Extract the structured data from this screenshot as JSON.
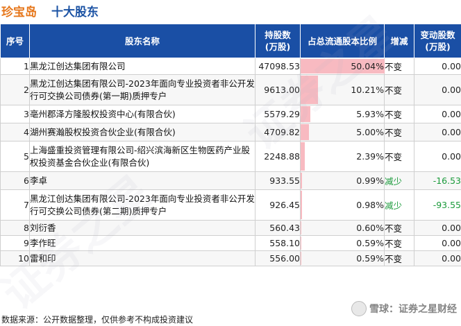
{
  "header": {
    "brand": "珍宝岛",
    "title": "十大股东"
  },
  "columns": {
    "idx": "序号",
    "name": "股东名称",
    "holding": "持股数\n(万股)",
    "ratio": "占总流通股本比例",
    "change": "增减",
    "delta": "变动股数\n(万股)"
  },
  "rows": [
    {
      "idx": "1",
      "name": "黑龙江创达集团有限公司",
      "holding": "47098.53",
      "ratio": "50.04%",
      "ratio_value": 50.04,
      "change": "不变",
      "delta": "0.00"
    },
    {
      "idx": "2",
      "name": "黑龙江创达集团有限公司-2023年面向专业投资者非公开发行可交换公司债券(第一期)质押专户",
      "holding": "9613.00",
      "ratio": "10.21%",
      "ratio_value": 10.21,
      "change": "不变",
      "delta": "0.00"
    },
    {
      "idx": "3",
      "name": "亳州郡泽方隆股权投资中心(有限合伙)",
      "holding": "5579.29",
      "ratio": "5.93%",
      "ratio_value": 5.93,
      "change": "不变",
      "delta": "0.00"
    },
    {
      "idx": "4",
      "name": "湖州赛瀚股权投资合伙企业(有限合伙)",
      "holding": "4709.82",
      "ratio": "5.00%",
      "ratio_value": 5.0,
      "change": "不变",
      "delta": "0.00"
    },
    {
      "idx": "5",
      "name": "上海盛重投资管理有限公司-绍兴滨海新区生物医药产业股权投资基金合伙企业(有限合伙)",
      "holding": "2248.88",
      "ratio": "2.39%",
      "ratio_value": 2.39,
      "change": "不变",
      "delta": "0.00"
    },
    {
      "idx": "6",
      "name": "李卓",
      "holding": "933.55",
      "ratio": "0.99%",
      "ratio_value": 0.99,
      "change": "减少",
      "delta": "-16.53"
    },
    {
      "idx": "7",
      "name": "黑龙江创达集团有限公司-2023年面向专业投资者非公开发行可交换公司债券(第二期)质押专户",
      "holding": "926.45",
      "ratio": "0.98%",
      "ratio_value": 0.98,
      "change": "减少",
      "delta": "-93.55"
    },
    {
      "idx": "8",
      "name": "刘衍香",
      "holding": "560.43",
      "ratio": "0.60%",
      "ratio_value": 0.6,
      "change": "不变",
      "delta": "0.00"
    },
    {
      "idx": "9",
      "name": "李作旺",
      "holding": "558.10",
      "ratio": "0.59%",
      "ratio_value": 0.59,
      "change": "不变",
      "delta": "0.00"
    },
    {
      "idx": "10",
      "name": "雷和印",
      "holding": "556.00",
      "ratio": "0.59%",
      "ratio_value": 0.59,
      "change": "不变",
      "delta": "0.00"
    }
  ],
  "colors": {
    "header_bg": "#1a4fa5",
    "brand": "#e6761a",
    "title": "#1c53a4",
    "bar": "#f7b3ba",
    "decrease": "#1a9a3a"
  },
  "footer": {
    "source": "数据来源：公开数据整理，仅供参考不构成投资建议"
  },
  "watermark": {
    "corner": "雪球：证券之星财经",
    "logo_icon": "snowball-logo-icon"
  }
}
